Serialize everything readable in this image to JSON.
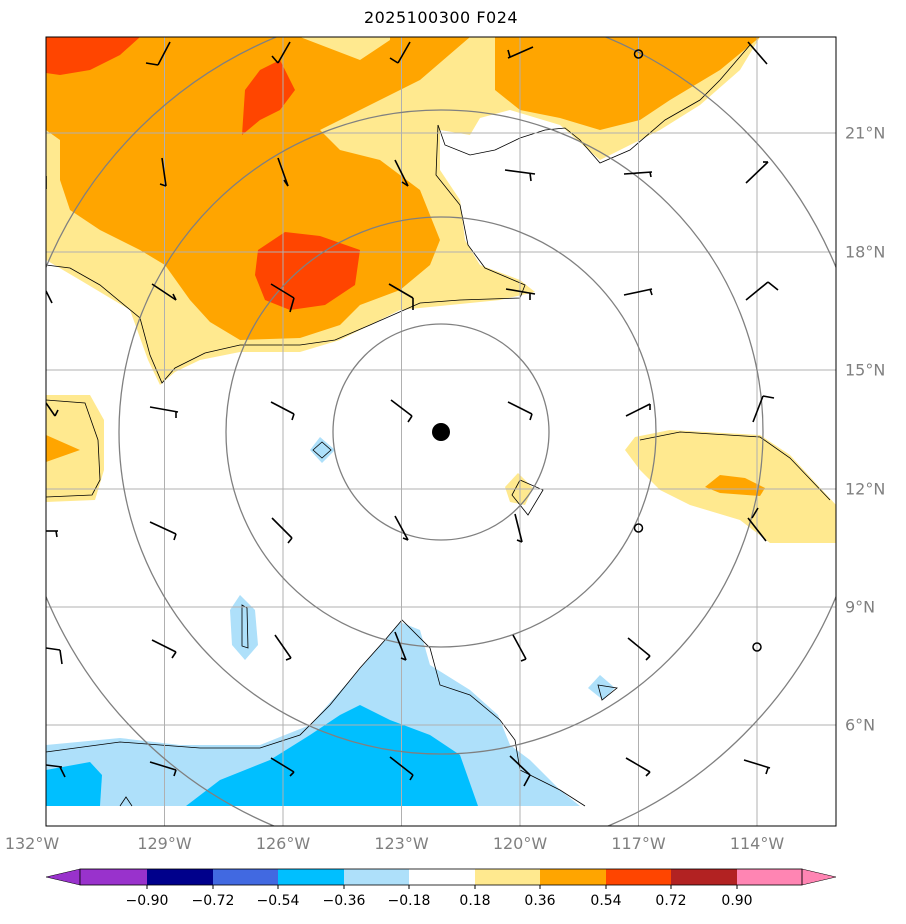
{
  "title": "2025100300 F024",
  "lon_ticks": [
    "132°W",
    "129°W",
    "126°W",
    "123°W",
    "120°W",
    "117°W",
    "114°W"
  ],
  "lat_ticks": [
    "21°N",
    "18°N",
    "15°N",
    "12°N",
    "9°N",
    "6°N"
  ],
  "colorbar": {
    "labels": [
      "−0.90",
      "−0.72",
      "−0.54",
      "−0.36",
      "−0.18",
      "0.18",
      "0.36",
      "0.54",
      "0.72",
      "0.90"
    ],
    "colors": [
      "#9932cc",
      "#00008b",
      "#4169e1",
      "#00bfff",
      "#aee0fa",
      "#ffffff",
      "#ffe98f",
      "#ffa500",
      "#ff4500",
      "#b22222",
      "#ff85b3"
    ]
  },
  "storm_center_symbol": "filled-circle",
  "range_rings": 4,
  "colors": {
    "grid": "#b0b0b0",
    "ring": "#808080",
    "coast": "#000000"
  }
}
